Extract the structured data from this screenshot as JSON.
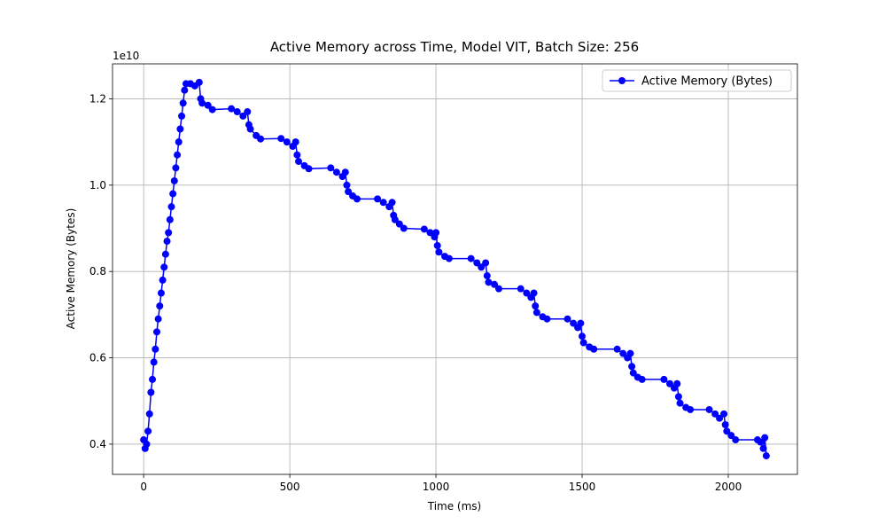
{
  "chart_data": {
    "type": "line",
    "title": "Active Memory across Time, Model VIT, Batch Size: 256",
    "x_label": "Time (ms)",
    "y_label": "Active Memory (Bytes)",
    "y_offset_label": "1e10",
    "legend": "upper right",
    "grid": true,
    "xlim": [
      -106.5,
      2236.5
    ],
    "ylim": [
      0.33,
      1.281
    ],
    "xticks": [
      0,
      500,
      1000,
      1500,
      2000
    ],
    "yticks": [
      0.4,
      0.6,
      0.8,
      {
        "value": 1.0,
        "label": "1.0"
      },
      1.2
    ],
    "x": [
      0,
      5,
      10,
      15,
      20,
      25,
      30,
      35,
      40,
      45,
      50,
      55,
      60,
      65,
      70,
      75,
      80,
      85,
      90,
      95,
      100,
      105,
      110,
      115,
      120,
      125,
      130,
      135,
      140,
      145,
      160,
      175,
      190,
      195,
      200,
      220,
      235,
      300,
      320,
      340,
      355,
      360,
      365,
      385,
      400,
      470,
      490,
      510,
      520,
      525,
      530,
      550,
      565,
      640,
      660,
      680,
      690,
      695,
      700,
      715,
      730,
      800,
      820,
      840,
      850,
      855,
      860,
      875,
      890,
      960,
      980,
      995,
      1000,
      1005,
      1010,
      1030,
      1045,
      1120,
      1140,
      1155,
      1170,
      1175,
      1180,
      1200,
      1215,
      1290,
      1310,
      1325,
      1335,
      1340,
      1345,
      1365,
      1380,
      1450,
      1470,
      1485,
      1495,
      1500,
      1505,
      1525,
      1540,
      1620,
      1640,
      1655,
      1665,
      1670,
      1675,
      1690,
      1705,
      1780,
      1800,
      1815,
      1825,
      1830,
      1835,
      1855,
      1870,
      1935,
      1955,
      1970,
      1985,
      1990,
      1995,
      2010,
      2025,
      2100,
      2110,
      2120,
      2125,
      2130
    ],
    "series": [
      {
        "name": "Active Memory (Bytes)",
        "color": "#0000ff",
        "values": [
          0.41,
          0.39,
          0.4,
          0.43,
          0.47,
          0.52,
          0.55,
          0.59,
          0.62,
          0.66,
          0.69,
          0.72,
          0.75,
          0.78,
          0.81,
          0.84,
          0.87,
          0.89,
          0.92,
          0.95,
          0.98,
          1.01,
          1.04,
          1.07,
          1.1,
          1.13,
          1.16,
          1.19,
          1.22,
          1.235,
          1.235,
          1.23,
          1.238,
          1.2,
          1.19,
          1.185,
          1.175,
          1.177,
          1.17,
          1.16,
          1.17,
          1.14,
          1.13,
          1.115,
          1.107,
          1.108,
          1.1,
          1.09,
          1.1,
          1.07,
          1.055,
          1.045,
          1.038,
          1.04,
          1.03,
          1.02,
          1.03,
          1.0,
          0.985,
          0.975,
          0.968,
          0.968,
          0.96,
          0.95,
          0.96,
          0.93,
          0.92,
          0.91,
          0.9,
          0.898,
          0.89,
          0.88,
          0.89,
          0.86,
          0.845,
          0.835,
          0.83,
          0.83,
          0.82,
          0.81,
          0.82,
          0.79,
          0.775,
          0.77,
          0.76,
          0.76,
          0.75,
          0.74,
          0.75,
          0.72,
          0.705,
          0.695,
          0.69,
          0.69,
          0.68,
          0.67,
          0.68,
          0.65,
          0.635,
          0.625,
          0.62,
          0.62,
          0.61,
          0.6,
          0.61,
          0.58,
          0.565,
          0.555,
          0.55,
          0.55,
          0.54,
          0.53,
          0.54,
          0.51,
          0.495,
          0.485,
          0.48,
          0.48,
          0.47,
          0.46,
          0.47,
          0.445,
          0.43,
          0.42,
          0.41,
          0.41,
          0.405,
          0.39,
          0.415,
          0.373
        ]
      }
    ]
  }
}
